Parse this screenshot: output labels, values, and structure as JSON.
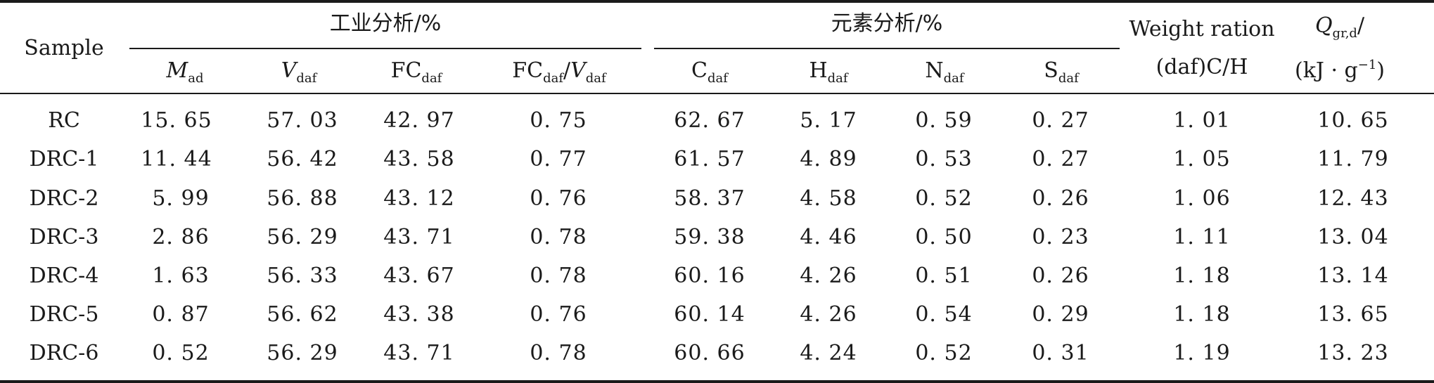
{
  "header": {
    "sample": "Sample",
    "industrial_group": "工业分析/%",
    "elemental_group": "元素分析/%",
    "weight_ratio_line1": "Weight ration",
    "weight_ratio_line2": "(daf)C/H",
    "q_main": "Q",
    "q_sub": "gr,d",
    "q_slash": "/",
    "q_unit_pre": "(kJ · g",
    "q_unit_sup": "−1",
    "q_unit_post": ")",
    "m_main": "M",
    "m_sub": "ad",
    "v_main": "V",
    "v_sub": "daf",
    "fc_main": "FC",
    "fc_sub": "daf",
    "fcv_main1": "FC",
    "fcv_sub1": "daf",
    "fcv_slash": "/",
    "fcv_main2": "V",
    "fcv_sub2": "daf",
    "c_main": "C",
    "c_sub": "daf",
    "h_main": "H",
    "h_sub": "daf",
    "n_main": "N",
    "n_sub": "daf",
    "s_main": "S",
    "s_sub": "daf"
  },
  "rows": [
    [
      "RC",
      "15. 65",
      "57. 03",
      "42. 97",
      "0. 75",
      "62. 67",
      "5. 17",
      "0. 59",
      "0. 27",
      "1. 01",
      "10. 65"
    ],
    [
      "DRC-1",
      "11. 44",
      "56. 42",
      "43. 58",
      "0. 77",
      "61. 57",
      "4. 89",
      "0. 53",
      "0. 27",
      "1. 05",
      "11. 79"
    ],
    [
      "DRC-2",
      "5. 99",
      "56. 88",
      "43. 12",
      "0. 76",
      "58. 37",
      "4. 58",
      "0. 52",
      "0. 26",
      "1. 06",
      "12. 43"
    ],
    [
      "DRC-3",
      "2. 86",
      "56. 29",
      "43. 71",
      "0. 78",
      "59. 38",
      "4. 46",
      "0. 50",
      "0. 23",
      "1. 11",
      "13. 04"
    ],
    [
      "DRC-4",
      "1. 63",
      "56. 33",
      "43. 67",
      "0. 78",
      "60. 16",
      "4. 26",
      "0. 51",
      "0. 26",
      "1. 18",
      "13. 14"
    ],
    [
      "DRC-5",
      "0. 87",
      "56. 62",
      "43. 38",
      "0. 76",
      "60. 14",
      "4. 26",
      "0. 54",
      "0. 29",
      "1. 18",
      "13. 65"
    ],
    [
      "DRC-6",
      "0. 52",
      "56. 29",
      "43. 71",
      "0. 78",
      "60. 66",
      "4. 24",
      "0. 52",
      "0. 31",
      "1. 19",
      "13. 23"
    ]
  ]
}
